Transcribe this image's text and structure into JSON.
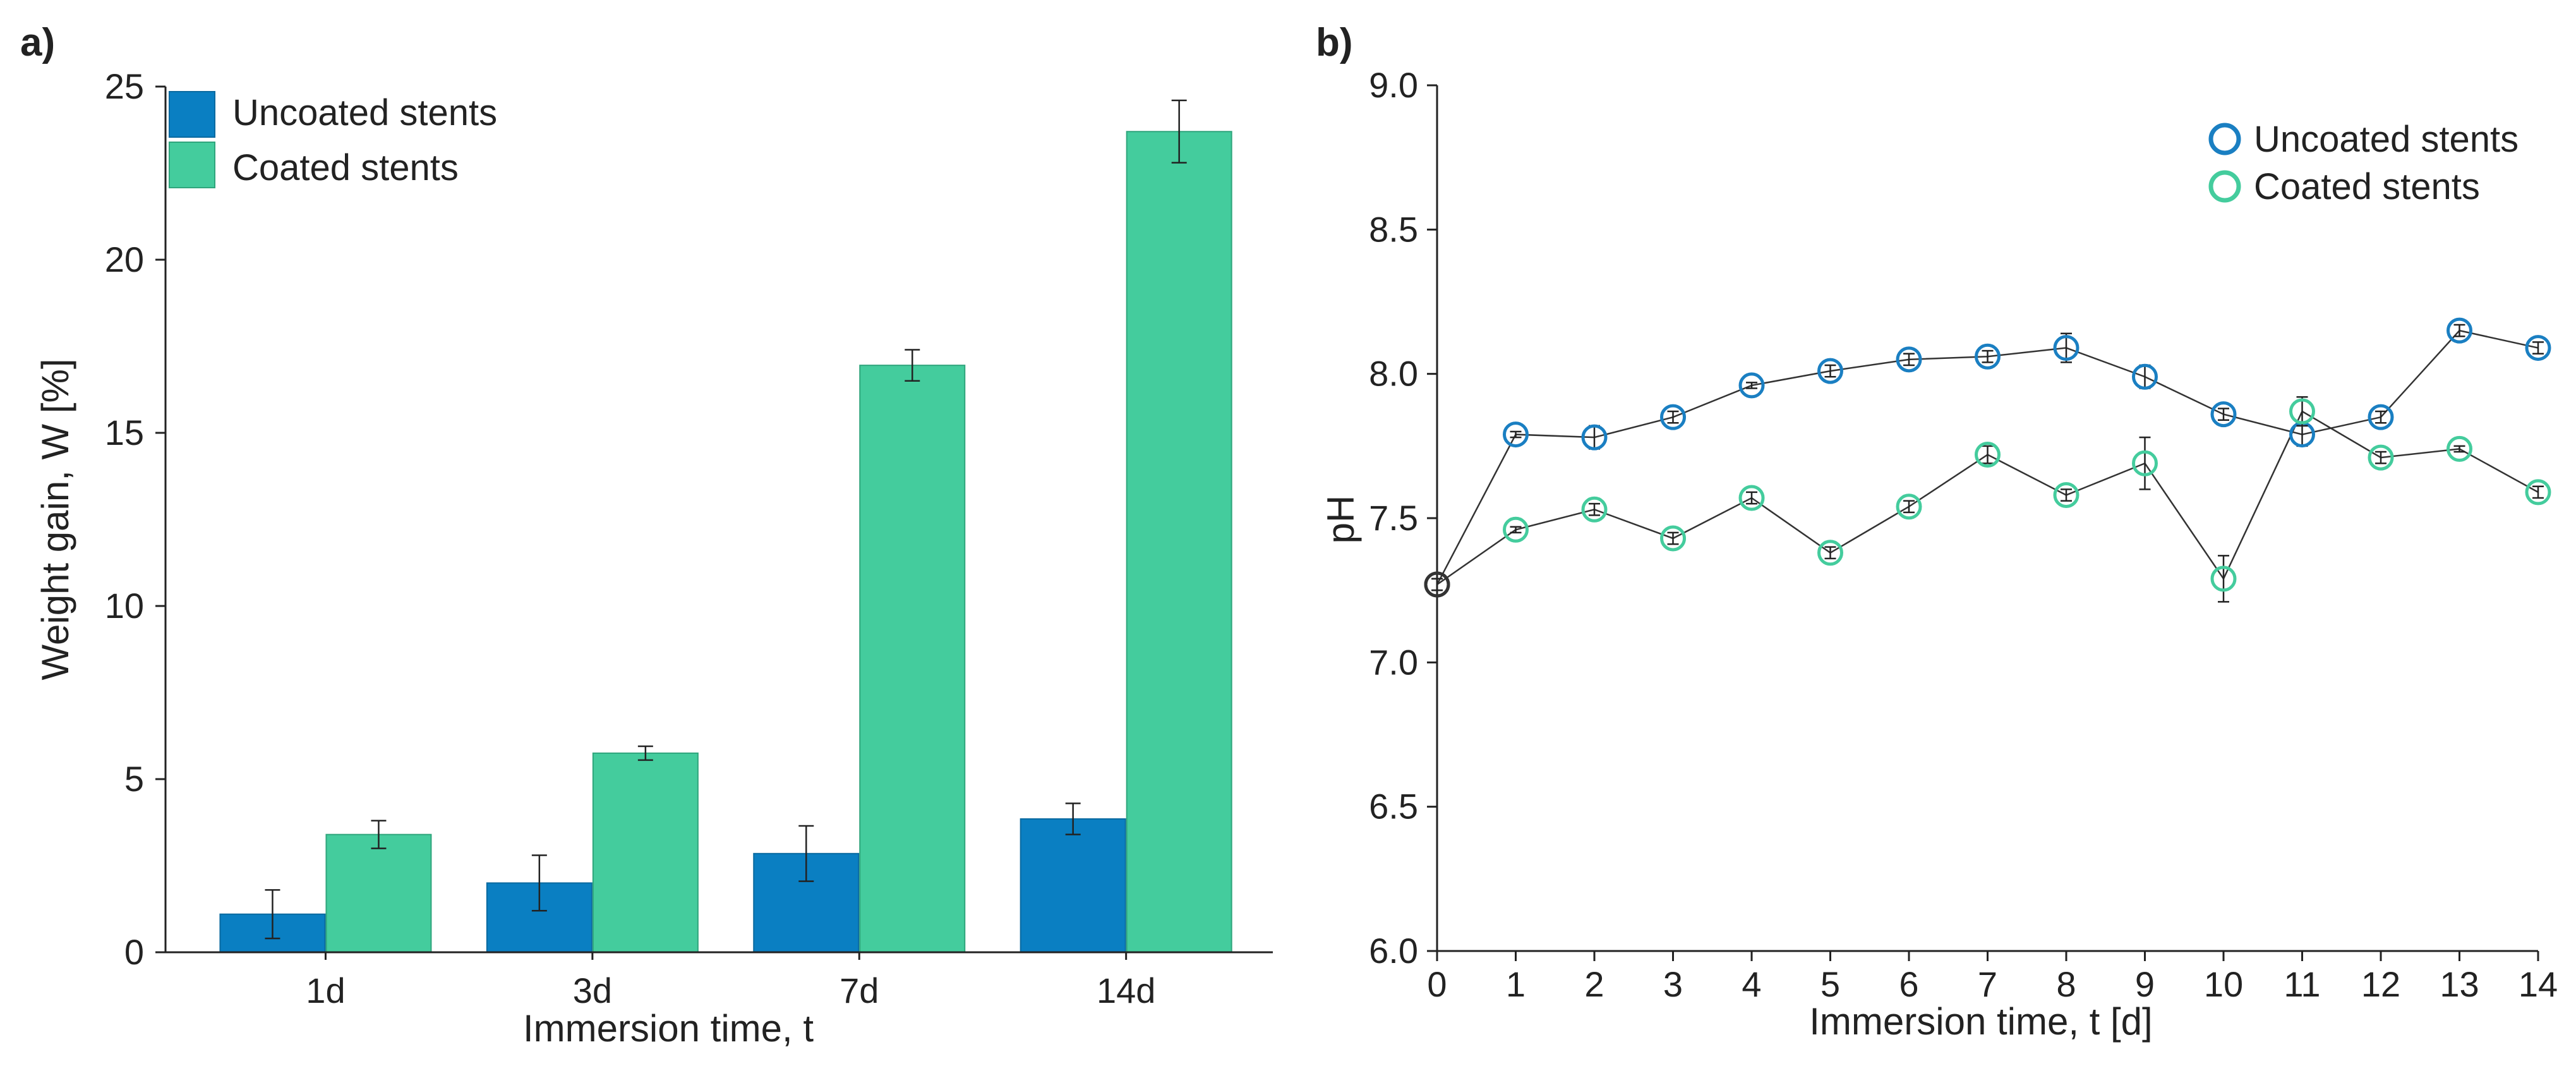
{
  "chart_data": [
    {
      "type": "bar",
      "panel_label": "a)",
      "title": "",
      "xlabel": "Immersion time, t",
      "ylabel": "Weight gain, W [%]",
      "categories": [
        "1d",
        "3d",
        "7d",
        "14d"
      ],
      "ylim": [
        0,
        25
      ],
      "yticks": [
        0,
        5,
        10,
        15,
        20,
        25
      ],
      "ytick_labels": [
        "0",
        "5",
        "10",
        "15",
        "20",
        "25"
      ],
      "legend_position": "top-left",
      "series": [
        {
          "name": "Uncoated stents",
          "color": "#0a7fc2",
          "values": [
            1.1,
            2.0,
            2.85,
            3.85
          ],
          "errors": [
            0.7,
            0.8,
            0.8,
            0.45
          ]
        },
        {
          "name": "Coated stents",
          "color": "#44cc9d",
          "values": [
            3.4,
            5.75,
            16.95,
            23.7
          ],
          "errors": [
            0.4,
            0.2,
            0.45,
            0.9
          ]
        }
      ]
    },
    {
      "type": "line",
      "panel_label": "b)",
      "title": "",
      "xlabel": "Immersion time, t [d]",
      "ylabel": "pH",
      "xlim": [
        0,
        14
      ],
      "ylim": [
        6.0,
        9.0
      ],
      "xticks": [
        0,
        1,
        2,
        3,
        4,
        5,
        6,
        7,
        8,
        9,
        10,
        11,
        12,
        13,
        14
      ],
      "xtick_labels": [
        "0",
        "1",
        "2",
        "3",
        "4",
        "5",
        "6",
        "7",
        "8",
        "9",
        "10",
        "11",
        "12",
        "13",
        "14"
      ],
      "yticks": [
        6.0,
        6.5,
        7.0,
        7.5,
        8.0,
        8.5,
        9.0
      ],
      "ytick_labels": [
        "6.0",
        "6.5",
        "7.0",
        "7.5",
        "8.0",
        "8.5",
        "9.0"
      ],
      "legend_position": "top-right",
      "x": [
        0,
        1,
        2,
        3,
        4,
        5,
        6,
        7,
        8,
        9,
        10,
        11,
        12,
        13,
        14
      ],
      "series": [
        {
          "name": "Uncoated stents",
          "color": "#1a7fc2",
          "values": [
            7.27,
            7.79,
            7.78,
            7.85,
            7.96,
            8.01,
            8.05,
            8.06,
            8.09,
            7.99,
            7.86,
            7.79,
            7.85,
            8.15,
            8.09
          ],
          "errors": [
            0.02,
            0.01,
            0.04,
            0.02,
            0.01,
            0.02,
            0.02,
            0.02,
            0.05,
            0.04,
            0.02,
            0.04,
            0.02,
            0.02,
            0.02
          ]
        },
        {
          "name": "Coated stents",
          "color": "#44cc9d",
          "values": [
            7.27,
            7.46,
            7.53,
            7.43,
            7.57,
            7.38,
            7.54,
            7.72,
            7.58,
            7.69,
            7.29,
            7.87,
            7.71,
            7.74,
            7.59
          ],
          "errors": [
            0.02,
            0.01,
            0.02,
            0.02,
            0.02,
            0.02,
            0.02,
            0.03,
            0.02,
            0.09,
            0.08,
            0.05,
            0.02,
            0.01,
            0.02
          ]
        }
      ]
    }
  ]
}
